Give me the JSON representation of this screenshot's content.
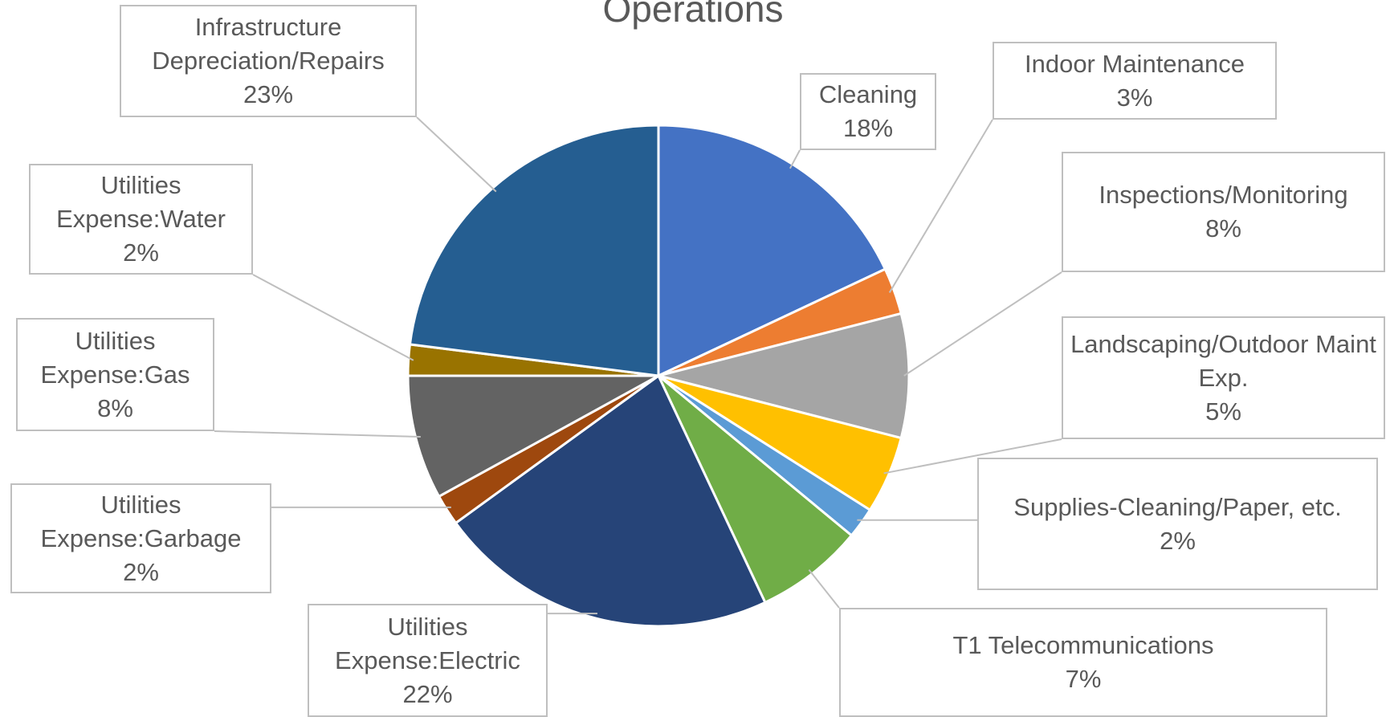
{
  "chart_data": {
    "type": "pie",
    "title": "Operations",
    "categories": [
      "Cleaning",
      "Indoor Maintenance",
      "Inspections/Monitoring",
      "Landscaping/Outdoor Maint Exp.",
      "Supplies-Cleaning/Paper, etc.",
      "T1 Telecommunications",
      "Utilities Expense:Electric",
      "Utilities Expense:Garbage",
      "Utilities Expense:Gas",
      "Utilities Expense:Water",
      "Infrastructure Depreciation/Repairs"
    ],
    "values": [
      18,
      3,
      8,
      5,
      2,
      7,
      22,
      2,
      8,
      2,
      23
    ],
    "value_labels": [
      "18%",
      "3%",
      "8%",
      "5%",
      "2%",
      "7%",
      "22%",
      "2%",
      "8%",
      "2%",
      "23%"
    ],
    "colors": [
      "#4472c4",
      "#ed7d31",
      "#a5a5a5",
      "#ffc000",
      "#5b9bd5",
      "#70ad47",
      "#264478",
      "#9e480e",
      "#636363",
      "#997300",
      "#255e91"
    ]
  }
}
